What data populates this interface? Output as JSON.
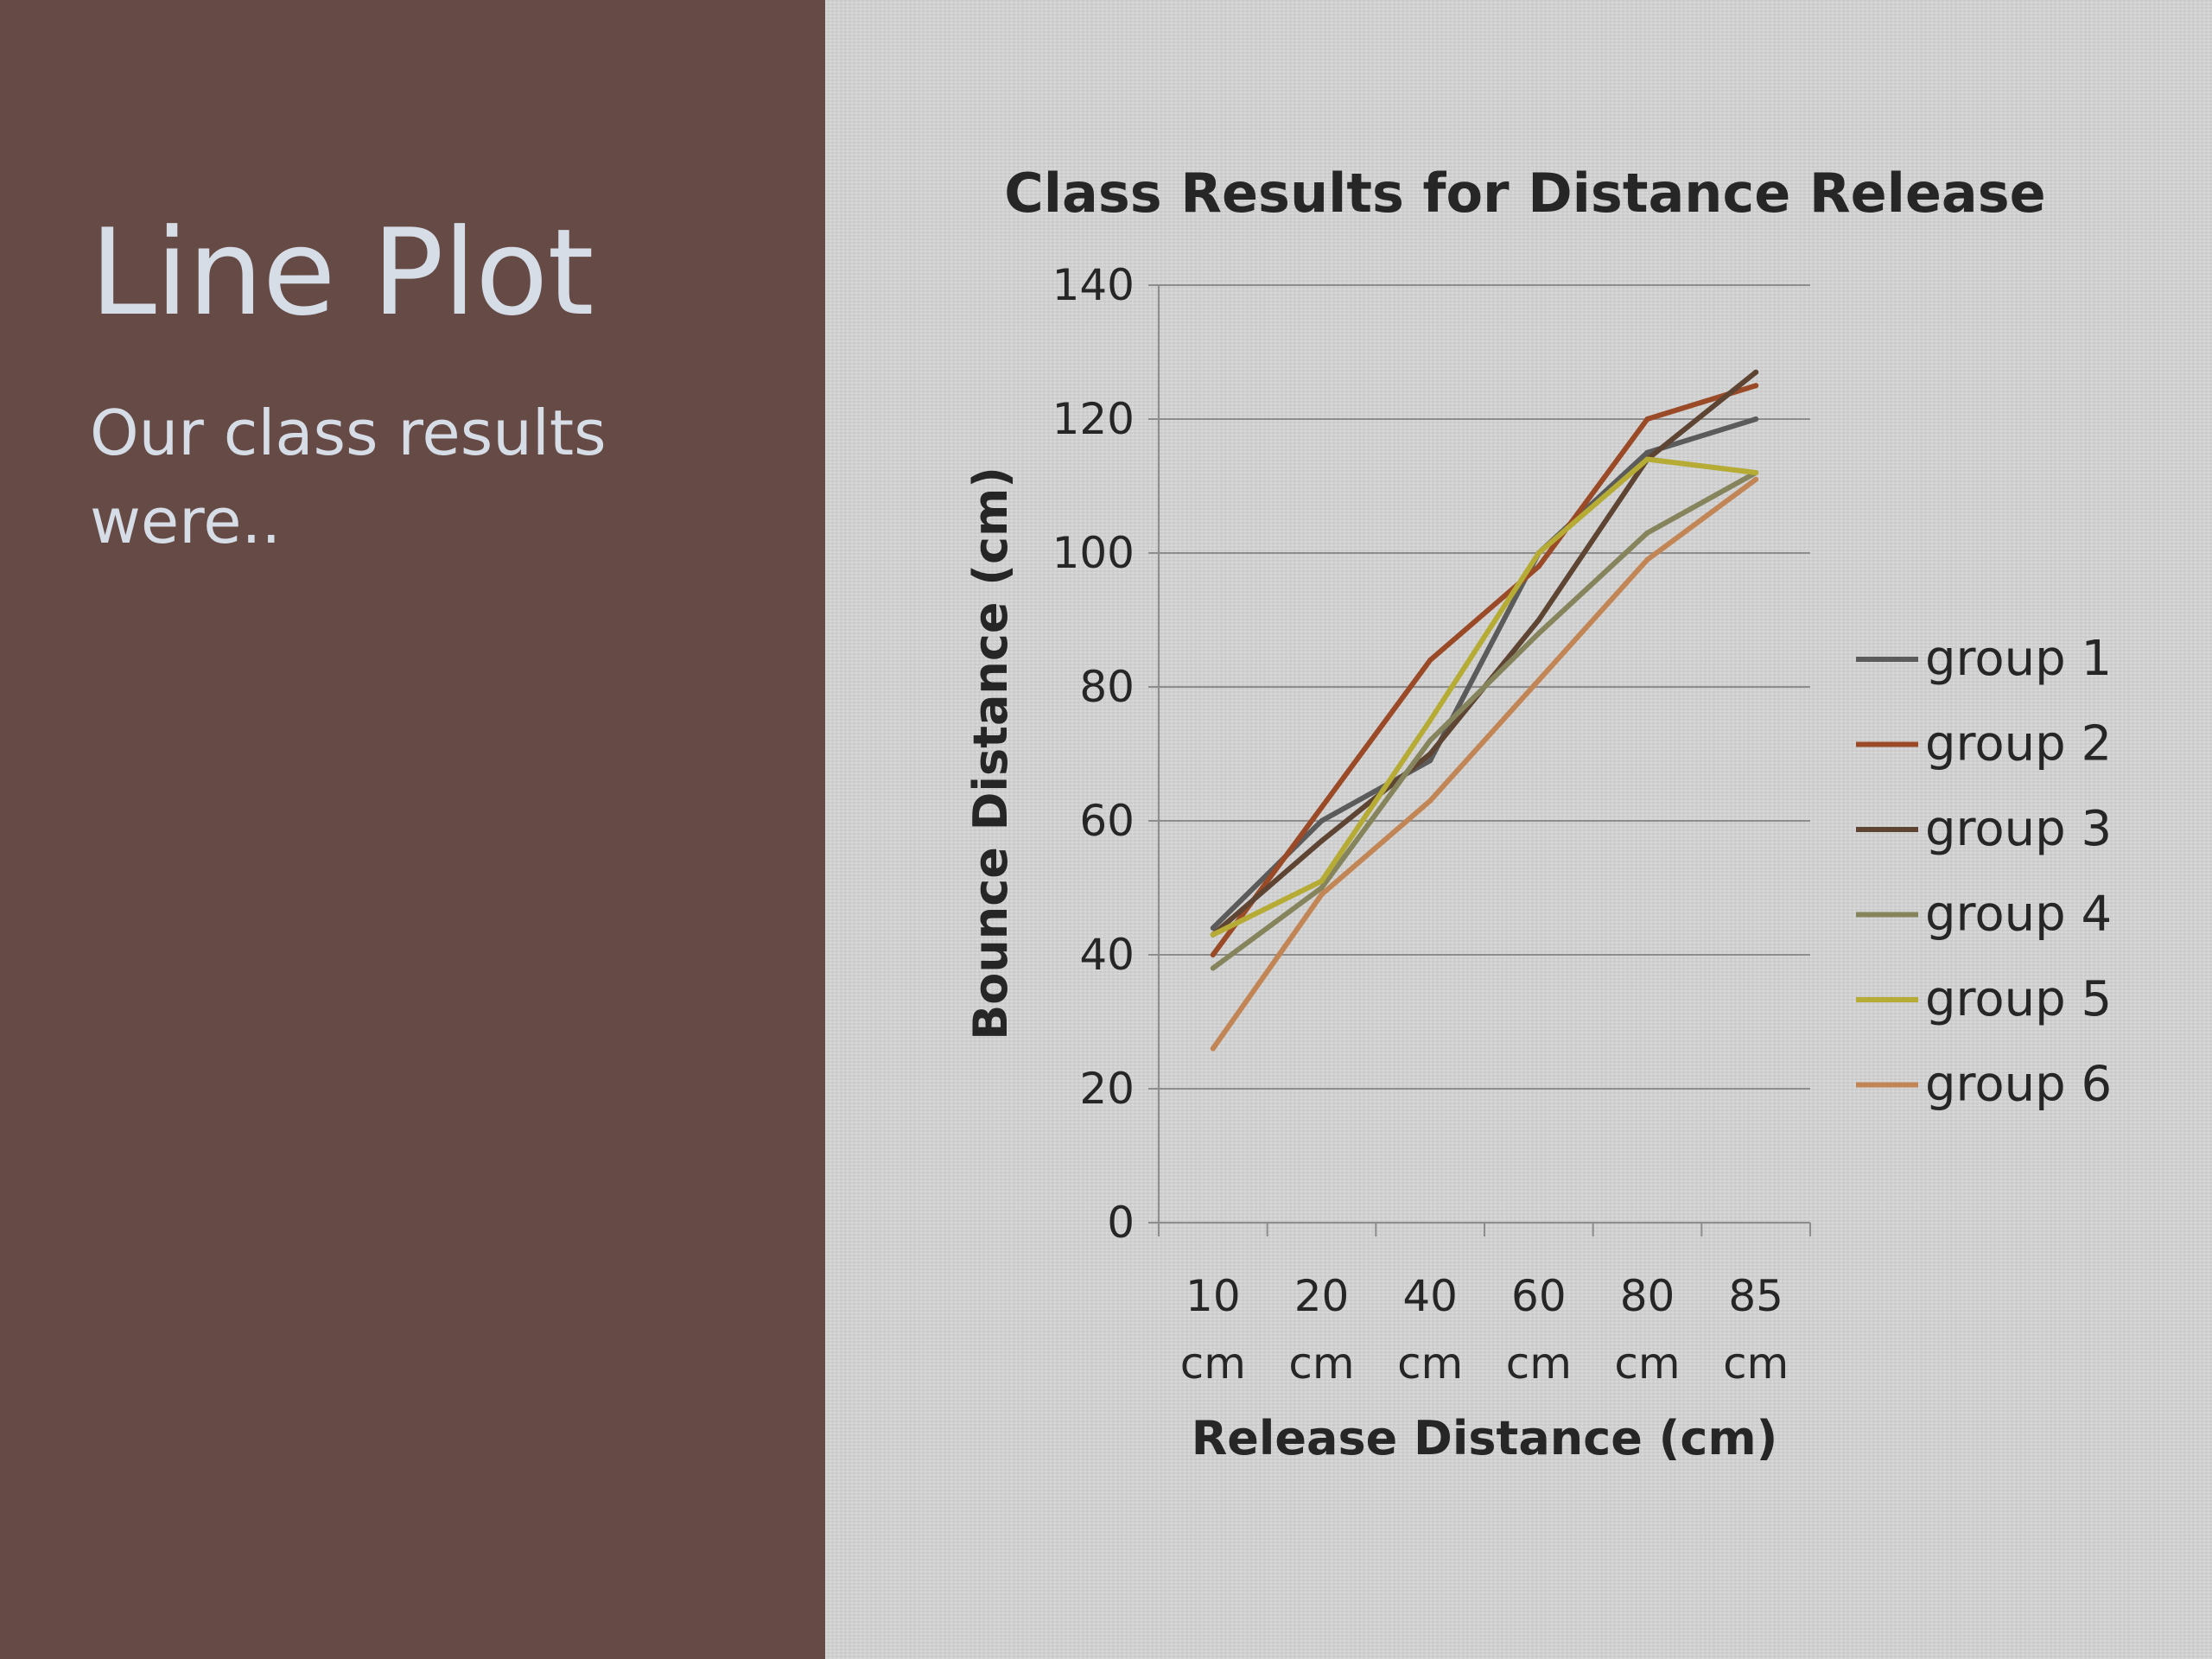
{
  "slide": {
    "title": "Line Plot",
    "subtitle": "Our class results were..",
    "left_panel_color": "#654a46",
    "right_panel_color": "#d3d3d3"
  },
  "chart_data": {
    "type": "line",
    "title": "Class Results for Distance Release",
    "xlabel": "Release Distance (cm)",
    "ylabel": "Bounce Distance (cm)",
    "categories": [
      "10 cm",
      "20 cm",
      "40 cm",
      "60 cm",
      "80 cm",
      "85 cm"
    ],
    "ylim": [
      0,
      140
    ],
    "yticks": [
      0,
      20,
      40,
      60,
      80,
      100,
      120,
      140
    ],
    "grid": "horizontal",
    "legend_position": "right",
    "series": [
      {
        "name": "group 1",
        "color": "#5b5b5b",
        "values": [
          44,
          60,
          69,
          100,
          115,
          120
        ]
      },
      {
        "name": "group 2",
        "color": "#9a4a27",
        "values": [
          40,
          62,
          84,
          98,
          120,
          125
        ]
      },
      {
        "name": "group 3",
        "color": "#5e4433",
        "values": [
          43,
          57,
          70,
          90,
          114,
          127
        ]
      },
      {
        "name": "group 4",
        "color": "#85845c",
        "values": [
          38,
          50,
          72,
          88,
          103,
          112
        ]
      },
      {
        "name": "group 5",
        "color": "#b5ab35",
        "values": [
          43,
          51,
          75,
          100,
          114,
          112
        ]
      },
      {
        "name": "group 6",
        "color": "#c28555",
        "values": [
          26,
          49,
          63,
          81,
          99,
          111
        ]
      }
    ]
  }
}
